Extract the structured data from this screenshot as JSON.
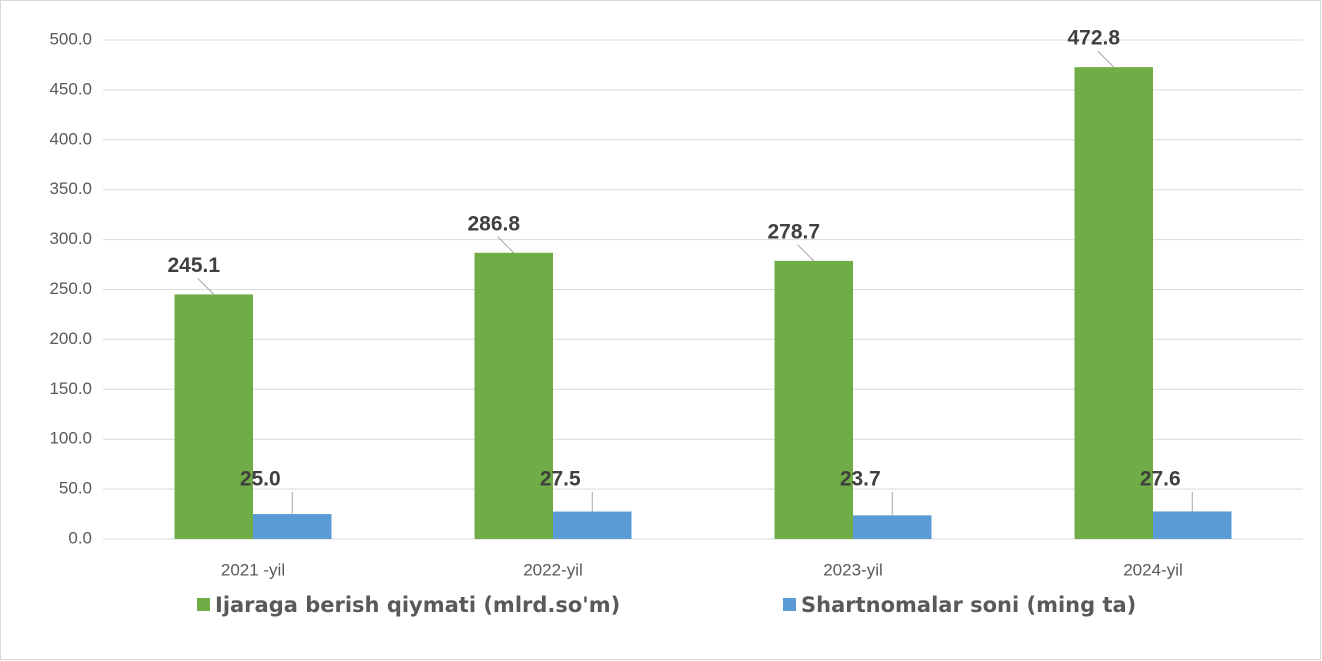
{
  "chart_data": {
    "type": "bar",
    "categories": [
      "2021 -yil",
      "2022-yil",
      "2023-yil",
      "2024-yil"
    ],
    "series": [
      {
        "name": "Ijaraga berish qiymati (mlrd.so'm)",
        "color": "#70ad47",
        "values": [
          245.1,
          286.8,
          278.7,
          472.8
        ],
        "value_labels": [
          "245.1",
          "286.8",
          "278.7",
          "472.8"
        ]
      },
      {
        "name": "Shartnomalar soni (ming ta)",
        "color": "#5b9bd5",
        "values": [
          25,
          27.5,
          23.7,
          27.6
        ],
        "value_labels": [
          "25.0",
          "27.5",
          "23.7",
          "27.6"
        ]
      }
    ],
    "ylim": [
      0,
      500
    ],
    "yticks": [
      {
        "value": 0,
        "label": "0.0"
      },
      {
        "value": 50,
        "label": "50.0"
      },
      {
        "value": 100,
        "label": "100.0"
      },
      {
        "value": 150,
        "label": "150.0"
      },
      {
        "value": 200,
        "label": "200.0"
      },
      {
        "value": 250,
        "label": "250.0"
      },
      {
        "value": 300,
        "label": "300.0"
      },
      {
        "value": 350,
        "label": "350.0"
      },
      {
        "value": 400,
        "label": "400.0"
      },
      {
        "value": 450,
        "label": "450.0"
      },
      {
        "value": 500,
        "label": "500.0"
      }
    ],
    "grid": true,
    "legend": "bottom"
  }
}
